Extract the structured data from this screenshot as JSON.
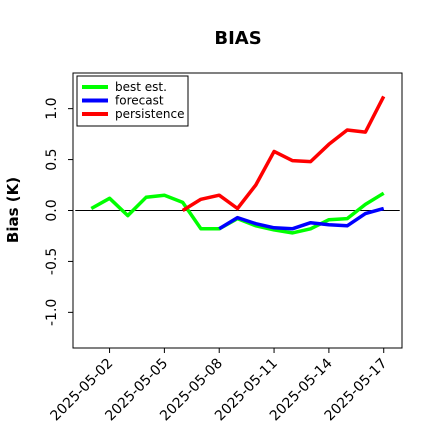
{
  "chart_data": {
    "type": "line",
    "title": "BIAS",
    "xlabel": "",
    "ylabel": "Bias (K)",
    "ylim": [
      -1.35,
      1.35
    ],
    "xlim": [
      "2025-05-00",
      "2025-05-18"
    ],
    "yticks": [
      -1.0,
      -0.5,
      0.0,
      0.5,
      1.0
    ],
    "ytick_labels": [
      "-1.0",
      "-0.5",
      "0.0",
      "0.5",
      "1.0"
    ],
    "xticks": [
      2,
      5,
      8,
      11,
      14,
      17
    ],
    "xtick_labels": [
      "2025-05-02",
      "2025-05-05",
      "2025-05-08",
      "2025-05-11",
      "2025-05-14",
      "2025-05-17"
    ],
    "highlight_tick_label": "2025-05-08",
    "highlight_tick_color": "#228B22",
    "zero_line": true,
    "legend_position": "top-left",
    "grid": false,
    "series": [
      {
        "name": "best est.",
        "color": "#00ff00",
        "x": [
          1,
          2,
          3,
          4,
          5,
          6,
          7,
          8,
          9,
          10,
          11,
          12,
          13,
          14,
          15,
          16,
          17
        ],
        "values": [
          0.02,
          0.12,
          -0.05,
          0.13,
          0.15,
          0.08,
          -0.18,
          -0.18,
          -0.08,
          -0.15,
          -0.19,
          -0.22,
          -0.18,
          -0.09,
          -0.08,
          0.06,
          0.17
        ]
      },
      {
        "name": "forecast",
        "color": "#0000ff",
        "x": [
          8,
          9,
          10,
          11,
          12,
          13,
          14,
          15,
          16,
          17
        ],
        "values": [
          -0.18,
          -0.07,
          -0.13,
          -0.17,
          -0.18,
          -0.12,
          -0.14,
          -0.15,
          -0.03,
          0.02
        ]
      },
      {
        "name": "persistence",
        "color": "#ff0000",
        "x": [
          6,
          7,
          8,
          9,
          10,
          11,
          12,
          13,
          14,
          15,
          16,
          17
        ],
        "values": [
          0.0,
          0.11,
          0.15,
          0.02,
          0.25,
          0.58,
          0.49,
          0.48,
          0.65,
          0.79,
          0.77,
          1.12
        ]
      }
    ]
  }
}
